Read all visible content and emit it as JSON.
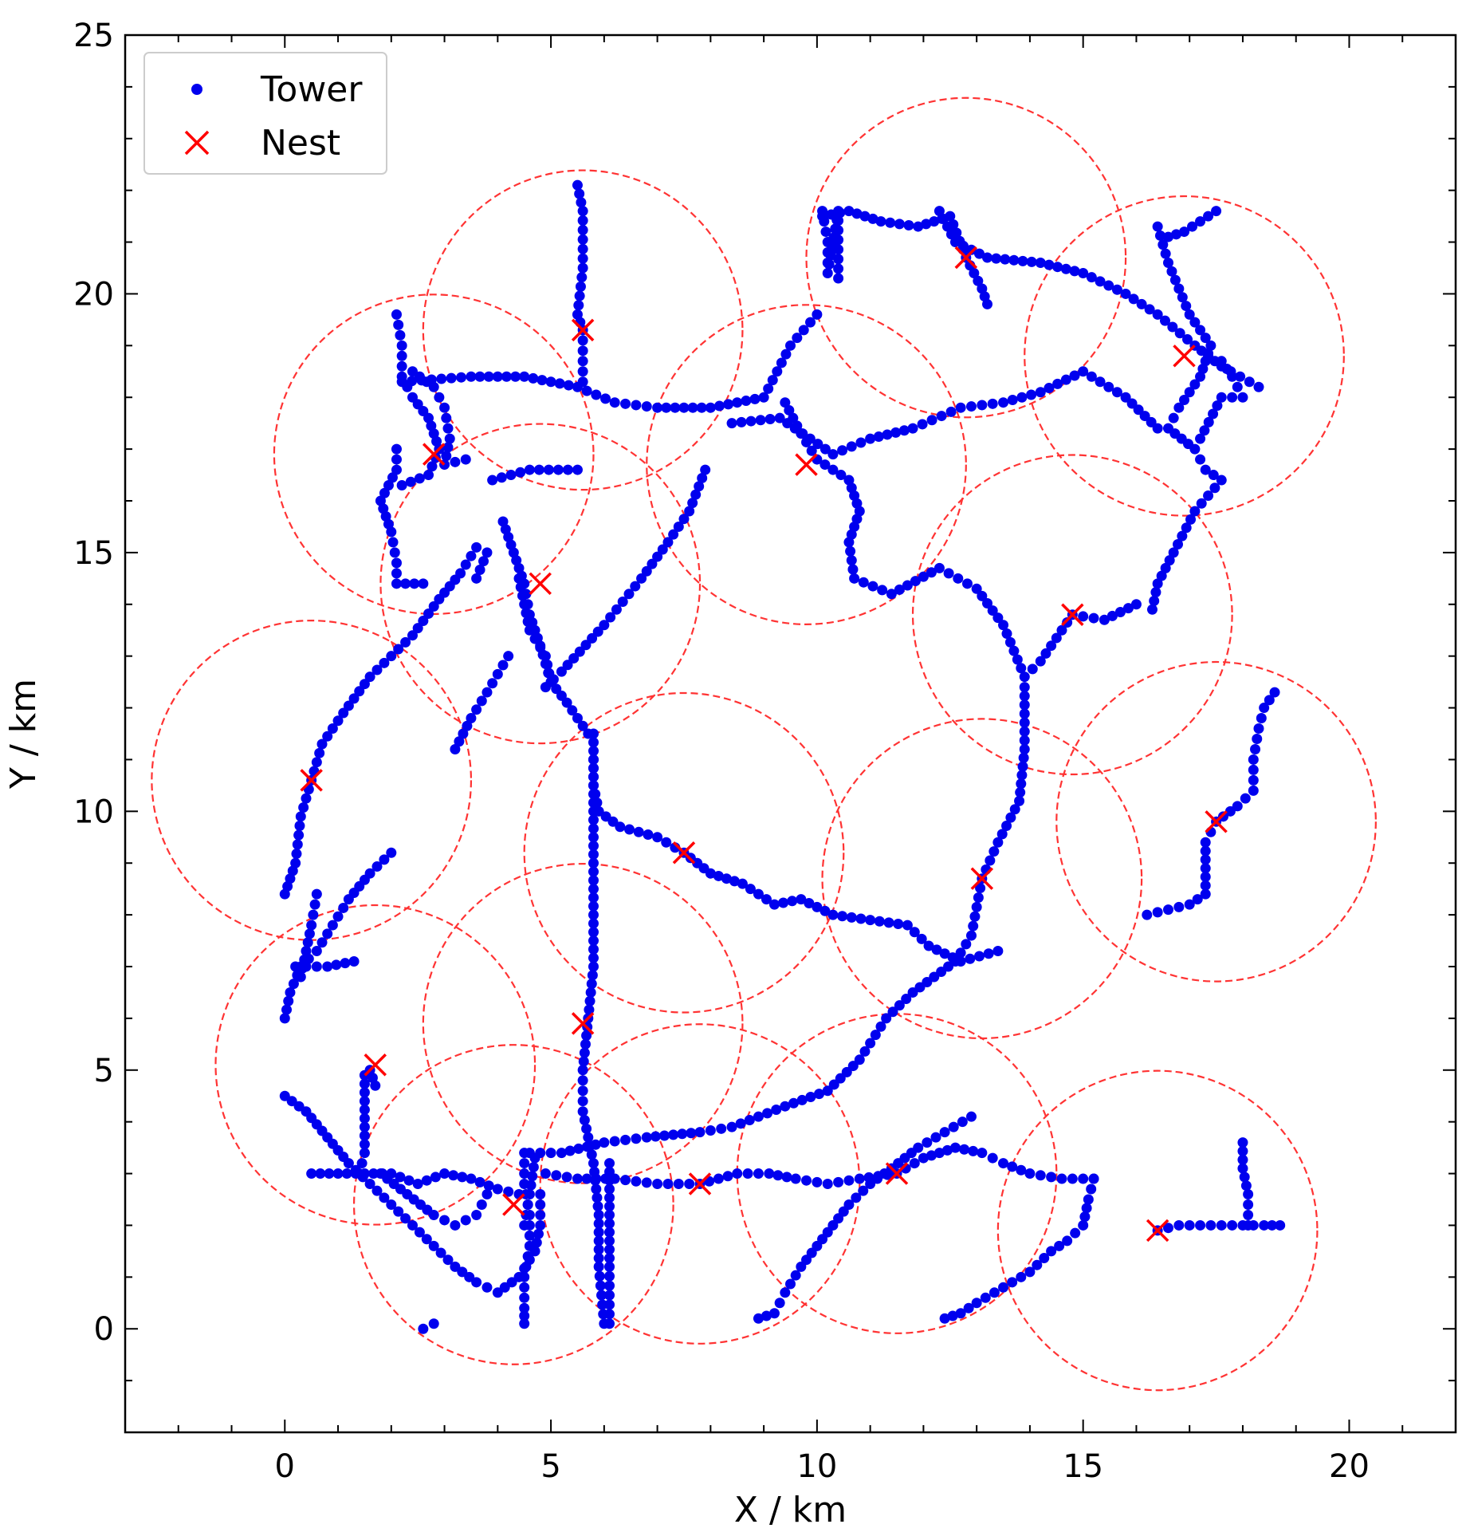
{
  "chart_data": {
    "type": "scatter",
    "xlabel": "X / km",
    "ylabel": "Y / km",
    "xlim": [
      -3,
      22
    ],
    "ylim": [
      -2,
      25
    ],
    "xticks": [
      0,
      5,
      10,
      15,
      20
    ],
    "yticks": [
      0,
      5,
      10,
      15,
      20,
      25
    ],
    "xtick_labels": [
      "0",
      "5",
      "10",
      "15",
      "20"
    ],
    "ytick_labels": [
      "0",
      "5",
      "10",
      "15",
      "20",
      "25"
    ],
    "legend": {
      "placement": "top-left",
      "entries": [
        "Tower",
        "Nest"
      ]
    },
    "colors": {
      "tower": "#0000ee",
      "nest": "#ff0000",
      "circle": "#ff3333"
    },
    "coverage_radius_km": 3,
    "nests": [
      [
        5.6,
        19.3
      ],
      [
        2.8,
        16.9
      ],
      [
        4.8,
        14.4
      ],
      [
        0.5,
        10.6
      ],
      [
        9.8,
        16.7
      ],
      [
        12.8,
        20.7
      ],
      [
        16.9,
        18.8
      ],
      [
        14.8,
        13.8
      ],
      [
        17.5,
        9.8
      ],
      [
        7.5,
        9.2
      ],
      [
        13.1,
        8.7
      ],
      [
        5.6,
        5.9
      ],
      [
        1.7,
        5.1
      ],
      [
        4.3,
        2.4
      ],
      [
        7.8,
        2.8
      ],
      [
        11.5,
        3.0
      ],
      [
        16.4,
        1.9
      ]
    ],
    "tower_paths": [
      [
        [
          5.5,
          22.1
        ],
        [
          5.6,
          21.6
        ],
        [
          5.6,
          20.5
        ],
        [
          5.5,
          19.6
        ],
        [
          5.6,
          19.3
        ],
        [
          5.6,
          18.7
        ],
        [
          5.6,
          18.3
        ]
      ],
      [
        [
          2.2,
          18.3
        ],
        [
          3.5,
          18.4
        ],
        [
          4.5,
          18.4
        ],
        [
          5.5,
          18.2
        ],
        [
          6.2,
          17.9
        ],
        [
          7.0,
          17.8
        ],
        [
          8.0,
          17.8
        ],
        [
          9.0,
          18.0
        ],
        [
          9.5,
          19.0
        ],
        [
          10.0,
          19.6
        ]
      ],
      [
        [
          2.1,
          19.6
        ],
        [
          2.2,
          19.0
        ],
        [
          2.2,
          18.4
        ],
        [
          2.4,
          18.0
        ],
        [
          2.7,
          17.6
        ],
        [
          2.9,
          17.0
        ],
        [
          2.7,
          16.5
        ],
        [
          2.2,
          16.3
        ]
      ],
      [
        [
          2.4,
          18.5
        ],
        [
          2.8,
          18.2
        ],
        [
          3.0,
          17.8
        ],
        [
          3.1,
          17.2
        ],
        [
          3.0,
          16.7
        ],
        [
          3.4,
          16.8
        ]
      ],
      [
        [
          2.1,
          17.0
        ],
        [
          2.1,
          16.6
        ],
        [
          1.8,
          16.0
        ],
        [
          2.0,
          15.4
        ],
        [
          2.1,
          14.8
        ],
        [
          2.1,
          14.4
        ],
        [
          2.6,
          14.4
        ]
      ],
      [
        [
          3.9,
          16.4
        ],
        [
          4.6,
          16.6
        ],
        [
          5.5,
          16.6
        ]
      ],
      [
        [
          9.4,
          17.9
        ],
        [
          9.7,
          17.3
        ],
        [
          10.0,
          16.8
        ],
        [
          10.6,
          16.4
        ],
        [
          10.8,
          15.8
        ],
        [
          10.6,
          15.2
        ],
        [
          10.7,
          14.5
        ],
        [
          11.4,
          14.2
        ],
        [
          12.3,
          14.7
        ],
        [
          13.0,
          14.3
        ],
        [
          13.5,
          13.6
        ],
        [
          13.9,
          12.6
        ],
        [
          14.2,
          12.9
        ],
        [
          14.8,
          13.8
        ],
        [
          15.4,
          13.7
        ],
        [
          16.0,
          14.0
        ]
      ],
      [
        [
          8.4,
          17.5
        ],
        [
          9.3,
          17.6
        ],
        [
          10.3,
          16.9
        ],
        [
          11.0,
          17.2
        ],
        [
          11.8,
          17.4
        ],
        [
          12.7,
          17.8
        ],
        [
          13.5,
          17.9
        ],
        [
          14.2,
          18.1
        ],
        [
          15.0,
          18.5
        ],
        [
          15.8,
          18.0
        ],
        [
          16.4,
          17.4
        ]
      ],
      [
        [
          10.1,
          21.5
        ],
        [
          10.6,
          21.6
        ],
        [
          11.2,
          21.4
        ],
        [
          11.9,
          21.3
        ],
        [
          12.5,
          21.5
        ],
        [
          12.8,
          20.7
        ],
        [
          13.1,
          20.1
        ],
        [
          13.2,
          19.8
        ]
      ],
      [
        [
          10.1,
          21.6
        ],
        [
          10.2,
          21.0
        ],
        [
          10.2,
          20.4
        ],
        [
          10.4,
          21.6
        ],
        [
          10.4,
          20.3
        ]
      ],
      [
        [
          12.3,
          21.6
        ],
        [
          12.6,
          21.0
        ],
        [
          13.2,
          20.7
        ],
        [
          14.2,
          20.6
        ],
        [
          15.0,
          20.4
        ],
        [
          15.8,
          20.0
        ],
        [
          16.4,
          19.6
        ],
        [
          17.1,
          19.0
        ],
        [
          17.6,
          18.6
        ],
        [
          18.3,
          18.2
        ]
      ],
      [
        [
          16.6,
          21.1
        ],
        [
          16.9,
          21.2
        ],
        [
          17.5,
          21.6
        ]
      ],
      [
        [
          16.4,
          21.3
        ],
        [
          16.6,
          20.6
        ],
        [
          17.0,
          19.6
        ],
        [
          17.4,
          19.0
        ],
        [
          17.2,
          18.4
        ],
        [
          16.8,
          17.8
        ],
        [
          16.6,
          17.4
        ],
        [
          17.1,
          17.0
        ],
        [
          17.3,
          16.6
        ],
        [
          17.6,
          16.4
        ],
        [
          17.1,
          15.8
        ],
        [
          16.7,
          15.0
        ],
        [
          16.4,
          14.4
        ],
        [
          16.3,
          13.9
        ]
      ],
      [
        [
          17.6,
          18.7
        ],
        [
          17.8,
          18.4
        ],
        [
          18.0,
          18.0
        ],
        [
          17.6,
          18.0
        ],
        [
          17.2,
          17.2
        ]
      ],
      [
        [
          13.9,
          12.4
        ],
        [
          13.9,
          11.2
        ],
        [
          13.8,
          10.2
        ],
        [
          13.4,
          9.4
        ],
        [
          13.1,
          8.7
        ],
        [
          12.9,
          7.6
        ],
        [
          12.6,
          7.1
        ],
        [
          11.8,
          6.5
        ],
        [
          11.3,
          6.0
        ],
        [
          10.8,
          5.2
        ],
        [
          10.2,
          4.6
        ],
        [
          9.4,
          4.3
        ],
        [
          8.4,
          3.9
        ],
        [
          7.8,
          3.8
        ],
        [
          6.8,
          3.7
        ],
        [
          6.0,
          3.6
        ],
        [
          5.2,
          3.4
        ],
        [
          4.6,
          3.4
        ]
      ],
      [
        [
          7.9,
          16.6
        ],
        [
          7.6,
          15.8
        ],
        [
          7.2,
          15.2
        ],
        [
          6.7,
          14.5
        ],
        [
          6.0,
          13.6
        ],
        [
          5.2,
          12.7
        ],
        [
          4.9,
          12.4
        ]
      ],
      [
        [
          4.1,
          15.6
        ],
        [
          4.3,
          15.0
        ],
        [
          4.5,
          14.4
        ],
        [
          4.6,
          13.8
        ],
        [
          4.8,
          13.2
        ],
        [
          5.0,
          12.5
        ],
        [
          5.3,
          12.1
        ],
        [
          5.7,
          11.5
        ]
      ],
      [
        [
          4.4,
          14.5
        ],
        [
          4.5,
          14.0
        ],
        [
          4.6,
          13.5
        ],
        [
          4.9,
          13.0
        ],
        [
          5.0,
          12.5
        ]
      ],
      [
        [
          3.6,
          15.1
        ],
        [
          3.3,
          14.6
        ],
        [
          2.9,
          14.1
        ],
        [
          2.4,
          13.4
        ],
        [
          2.0,
          13.0
        ],
        [
          1.6,
          12.6
        ],
        [
          1.1,
          11.9
        ],
        [
          0.7,
          11.3
        ],
        [
          0.5,
          10.6
        ],
        [
          0.3,
          9.9
        ],
        [
          0.2,
          9.0
        ],
        [
          0.0,
          8.4
        ]
      ],
      [
        [
          4.2,
          13.0
        ],
        [
          3.8,
          12.3
        ],
        [
          3.5,
          11.8
        ],
        [
          3.2,
          11.2
        ]
      ],
      [
        [
          3.8,
          15.0
        ],
        [
          3.6,
          14.5
        ]
      ],
      [
        [
          5.8,
          11.5
        ],
        [
          5.8,
          11.0
        ],
        [
          5.8,
          10.5
        ],
        [
          5.9,
          10.0
        ],
        [
          6.3,
          9.7
        ],
        [
          7.0,
          9.5
        ],
        [
          7.5,
          9.2
        ],
        [
          8.0,
          8.8
        ],
        [
          8.6,
          8.6
        ],
        [
          9.2,
          8.2
        ],
        [
          9.7,
          8.3
        ],
        [
          10.3,
          8.0
        ],
        [
          11.0,
          7.9
        ],
        [
          11.7,
          7.8
        ],
        [
          12.1,
          7.4
        ],
        [
          12.7,
          7.1
        ],
        [
          13.4,
          7.3
        ]
      ],
      [
        [
          5.8,
          11.0
        ],
        [
          5.8,
          10.0
        ],
        [
          5.8,
          9.0
        ],
        [
          5.8,
          8.0
        ],
        [
          5.8,
          7.0
        ],
        [
          5.7,
          6.0
        ],
        [
          5.6,
          5.0
        ],
        [
          5.6,
          4.2
        ],
        [
          5.8,
          3.2
        ],
        [
          5.9,
          2.2
        ],
        [
          5.9,
          1.2
        ],
        [
          6.0,
          0.1
        ]
      ],
      [
        [
          6.1,
          3.2
        ],
        [
          6.1,
          2.2
        ],
        [
          6.1,
          1.2
        ],
        [
          6.1,
          0.1
        ]
      ],
      [
        [
          2.0,
          9.2
        ],
        [
          1.6,
          8.8
        ],
        [
          1.2,
          8.3
        ],
        [
          0.9,
          7.8
        ],
        [
          0.6,
          7.3
        ],
        [
          0.3,
          7.0
        ],
        [
          0.1,
          6.5
        ],
        [
          0.0,
          6.0
        ]
      ],
      [
        [
          0.6,
          8.4
        ],
        [
          0.5,
          7.8
        ],
        [
          0.4,
          7.3
        ],
        [
          0.3,
          6.8
        ]
      ],
      [
        [
          0.2,
          7.0
        ],
        [
          0.8,
          7.0
        ],
        [
          1.3,
          7.1
        ]
      ],
      [
        [
          1.5,
          4.9
        ],
        [
          1.5,
          4.4
        ],
        [
          1.5,
          3.9
        ],
        [
          1.5,
          3.4
        ],
        [
          1.4,
          3.0
        ]
      ],
      [
        [
          1.6,
          5.0
        ],
        [
          1.7,
          4.7
        ]
      ],
      [
        [
          0.0,
          4.5
        ],
        [
          0.4,
          4.2
        ],
        [
          0.8,
          3.7
        ],
        [
          1.2,
          3.2
        ],
        [
          1.6,
          2.8
        ],
        [
          2.0,
          2.4
        ],
        [
          2.4,
          2.0
        ],
        [
          2.8,
          1.6
        ],
        [
          3.2,
          1.2
        ],
        [
          3.6,
          0.9
        ],
        [
          4.0,
          0.7
        ],
        [
          4.4,
          1.0
        ],
        [
          4.7,
          1.5
        ],
        [
          4.8,
          2.0
        ],
        [
          4.8,
          2.6
        ]
      ],
      [
        [
          0.5,
          3.0
        ],
        [
          1.0,
          3.0
        ],
        [
          1.5,
          3.0
        ],
        [
          2.0,
          3.0
        ],
        [
          2.5,
          2.8
        ],
        [
          3.0,
          3.0
        ],
        [
          3.5,
          2.9
        ],
        [
          4.0,
          2.7
        ],
        [
          4.4,
          2.6
        ]
      ],
      [
        [
          1.8,
          3.0
        ],
        [
          2.3,
          2.6
        ],
        [
          2.8,
          2.2
        ],
        [
          3.2,
          2.0
        ],
        [
          3.6,
          2.2
        ],
        [
          3.8,
          2.6
        ]
      ],
      [
        [
          4.5,
          3.4
        ],
        [
          4.5,
          2.8
        ],
        [
          4.6,
          2.2
        ],
        [
          4.6,
          1.6
        ],
        [
          4.5,
          1.0
        ],
        [
          4.5,
          0.4
        ],
        [
          4.5,
          0.1
        ]
      ],
      [
        [
          4.7,
          3.3
        ],
        [
          4.6,
          2.6
        ],
        [
          4.5,
          2.0
        ]
      ],
      [
        [
          2.6,
          0.0
        ],
        [
          2.8,
          0.1
        ]
      ],
      [
        [
          4.9,
          3.0
        ],
        [
          5.5,
          2.9
        ],
        [
          6.2,
          2.9
        ],
        [
          7.0,
          2.8
        ],
        [
          7.8,
          2.8
        ],
        [
          8.5,
          3.0
        ],
        [
          9.1,
          3.0
        ],
        [
          9.6,
          2.9
        ],
        [
          10.2,
          2.8
        ],
        [
          10.8,
          2.9
        ],
        [
          11.5,
          3.0
        ],
        [
          12.0,
          3.3
        ],
        [
          12.6,
          3.5
        ],
        [
          13.1,
          3.4
        ],
        [
          13.5,
          3.2
        ],
        [
          14.0,
          3.0
        ],
        [
          14.6,
          2.9
        ],
        [
          15.2,
          2.9
        ]
      ],
      [
        [
          15.2,
          2.9
        ],
        [
          15.1,
          2.5
        ],
        [
          15.0,
          2.0
        ],
        [
          14.7,
          1.7
        ],
        [
          14.4,
          1.5
        ],
        [
          14.0,
          1.1
        ],
        [
          13.5,
          0.8
        ],
        [
          13.0,
          0.5
        ],
        [
          12.7,
          0.3
        ],
        [
          12.4,
          0.2
        ]
      ],
      [
        [
          8.9,
          0.2
        ],
        [
          9.2,
          0.3
        ],
        [
          9.4,
          0.7
        ],
        [
          9.7,
          1.2
        ],
        [
          10.0,
          1.6
        ],
        [
          10.3,
          2.0
        ],
        [
          10.6,
          2.4
        ],
        [
          11.0,
          2.8
        ],
        [
          11.4,
          3.1
        ],
        [
          11.9,
          3.5
        ],
        [
          12.4,
          3.8
        ],
        [
          12.9,
          4.1
        ]
      ],
      [
        [
          16.4,
          1.9
        ],
        [
          16.8,
          2.0
        ],
        [
          17.2,
          2.0
        ],
        [
          17.6,
          2.0
        ],
        [
          18.0,
          2.0
        ],
        [
          18.4,
          2.0
        ],
        [
          18.7,
          2.0
        ]
      ],
      [
        [
          18.1,
          2.0
        ],
        [
          18.1,
          2.6
        ],
        [
          18.0,
          3.1
        ],
        [
          18.0,
          3.6
        ]
      ],
      [
        [
          16.2,
          8.0
        ],
        [
          16.6,
          8.1
        ],
        [
          17.0,
          8.2
        ],
        [
          17.3,
          8.4
        ],
        [
          17.3,
          8.9
        ],
        [
          17.3,
          9.4
        ],
        [
          17.5,
          9.8
        ],
        [
          17.9,
          10.1
        ],
        [
          18.2,
          10.4
        ],
        [
          18.2,
          11.0
        ],
        [
          18.3,
          11.6
        ],
        [
          18.4,
          12.0
        ],
        [
          18.6,
          12.3
        ]
      ]
    ]
  }
}
